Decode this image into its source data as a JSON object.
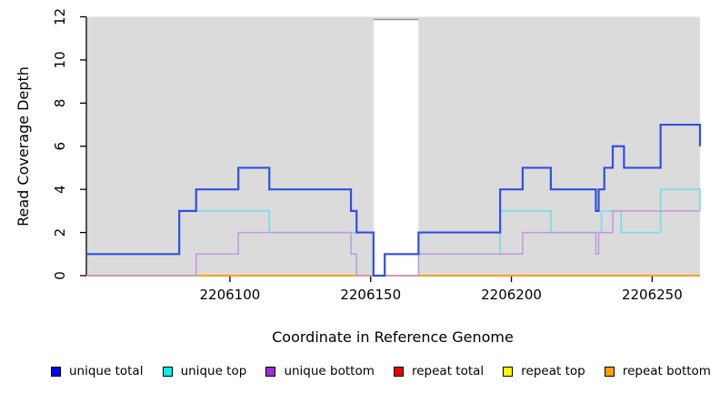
{
  "chart_data": {
    "type": "line",
    "subtype": "step-coverage",
    "title": "",
    "xlabel": "Coordinate in Reference Genome",
    "ylabel": "Read Coverage Depth",
    "xlim": [
      2206049,
      2206267
    ],
    "ylim": [
      0,
      12
    ],
    "x_ticks": [
      2206100,
      2206150,
      2206200,
      2206250
    ],
    "y_ticks": [
      0,
      2,
      4,
      6,
      8,
      10,
      12
    ],
    "grid": false,
    "background": "#ffffff",
    "panel_background": "#dbdbdb",
    "axis_color": "#000000",
    "gap_region": {
      "from": 2206151,
      "to": 2206167,
      "fill": "#ffffff",
      "top_border_color": "#999999"
    },
    "legend_position": "bottom",
    "series": [
      {
        "name": "repeat total",
        "color": "#ee0000",
        "line_width": 1.5,
        "steps": [
          [
            2206049,
            0
          ]
        ]
      },
      {
        "name": "repeat top",
        "color": "#ffff00",
        "line_width": 1.5,
        "steps": [
          [
            2206049,
            0
          ]
        ]
      },
      {
        "name": "repeat bottom",
        "color": "#ffa00a",
        "line_width": 2,
        "steps": [
          [
            2206049,
            0
          ]
        ]
      },
      {
        "name": "unique top",
        "color": "#6adfe8",
        "line_width": 1.5,
        "steps": [
          [
            2206049,
            1
          ],
          [
            2206082,
            3
          ],
          [
            2206114,
            2
          ],
          [
            2206151,
            0
          ],
          [
            2206155,
            1
          ],
          [
            2206196,
            3
          ],
          [
            2206214,
            2
          ],
          [
            2206232,
            3
          ],
          [
            2206239,
            2
          ],
          [
            2206253,
            4
          ],
          [
            2206267,
            3
          ]
        ]
      },
      {
        "name": "unique bottom",
        "color": "#c098e0",
        "line_width": 1.5,
        "steps": [
          [
            2206049,
            0
          ],
          [
            2206088,
            1
          ],
          [
            2206103,
            2
          ],
          [
            2206143,
            1
          ],
          [
            2206145,
            0
          ],
          [
            2206167,
            1
          ],
          [
            2206204,
            2
          ],
          [
            2206230,
            1
          ],
          [
            2206231,
            2
          ],
          [
            2206236,
            3
          ]
        ]
      },
      {
        "name": "unique total",
        "color": "#3050e0",
        "line_width": 2.2,
        "steps": [
          [
            2206049,
            1
          ],
          [
            2206082,
            3
          ],
          [
            2206088,
            4
          ],
          [
            2206103,
            5
          ],
          [
            2206114,
            4
          ],
          [
            2206143,
            3
          ],
          [
            2206145,
            2
          ],
          [
            2206151,
            0
          ],
          [
            2206155,
            1
          ],
          [
            2206167,
            2
          ],
          [
            2206196,
            4
          ],
          [
            2206204,
            5
          ],
          [
            2206214,
            4
          ],
          [
            2206230,
            3
          ],
          [
            2206231,
            4
          ],
          [
            2206233,
            5
          ],
          [
            2206236,
            6
          ],
          [
            2206240,
            5
          ],
          [
            2206253,
            7
          ],
          [
            2206267,
            6
          ]
        ]
      }
    ],
    "legend": [
      {
        "label": "unique total",
        "swatch_color": "#0404f0"
      },
      {
        "label": "unique top",
        "swatch_color": "#00efef"
      },
      {
        "label": "unique bottom",
        "swatch_color": "#9d2dd6"
      },
      {
        "label": "repeat total",
        "swatch_color": "#ee0000"
      },
      {
        "label": "repeat top",
        "swatch_color": "#ffff00"
      },
      {
        "label": "repeat bottom",
        "swatch_color": "#ffa000"
      }
    ]
  }
}
